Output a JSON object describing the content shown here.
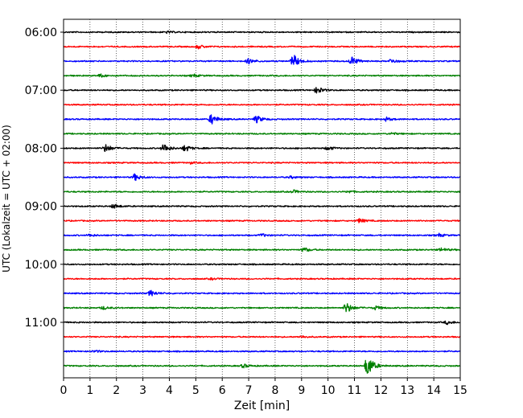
{
  "chart_data": {
    "type": "helicorder",
    "xlabel": "Zeit  [min]",
    "ylabel": "UTC (Lokalzeit = UTC + 02:00)",
    "xlim": [
      0,
      15
    ],
    "x_ticks": [
      "0",
      "1",
      "2",
      "3",
      "4",
      "5",
      "6",
      "7",
      "8",
      "9",
      "10",
      "11",
      "12",
      "13",
      "14",
      "15"
    ],
    "grid": "vertical dotted at each minute",
    "y_tick_labels": [
      "06:00",
      "07:00",
      "08:00",
      "09:00",
      "10:00",
      "11:00"
    ],
    "trace_interval_min": 15,
    "trace_colors": [
      "#000000",
      "#ff0000",
      "#0000ff",
      "#008000"
    ],
    "traces": [
      {
        "start": "06:00",
        "color": "#000000",
        "events": [
          {
            "t": 3.9,
            "amp": 0.12
          }
        ]
      },
      {
        "start": "06:15",
        "color": "#ff0000",
        "events": [
          {
            "t": 5.1,
            "amp": 0.25
          }
        ]
      },
      {
        "start": "06:30",
        "color": "#0000ff",
        "events": [
          {
            "t": 7.0,
            "amp": 0.35
          },
          {
            "t": 8.7,
            "amp": 0.9
          },
          {
            "t": 10.9,
            "amp": 0.6
          },
          {
            "t": 12.4,
            "amp": 0.3
          }
        ]
      },
      {
        "start": "06:45",
        "color": "#008000",
        "events": [
          {
            "t": 1.4,
            "amp": 0.2
          },
          {
            "t": 4.9,
            "amp": 0.2
          }
        ]
      },
      {
        "start": "07:00",
        "color": "#000000",
        "events": [
          {
            "t": 9.6,
            "amp": 0.5
          }
        ]
      },
      {
        "start": "07:15",
        "color": "#ff0000",
        "events": []
      },
      {
        "start": "07:30",
        "color": "#0000ff",
        "events": [
          {
            "t": 5.6,
            "amp": 0.7
          },
          {
            "t": 7.3,
            "amp": 0.5
          },
          {
            "t": 12.2,
            "amp": 0.25
          }
        ]
      },
      {
        "start": "07:45",
        "color": "#008000",
        "events": [
          {
            "t": 12.4,
            "amp": 0.15
          }
        ]
      },
      {
        "start": "08:00",
        "color": "#000000",
        "events": [
          {
            "t": 1.6,
            "amp": 0.55
          },
          {
            "t": 3.8,
            "amp": 0.6
          },
          {
            "t": 4.6,
            "amp": 0.45
          },
          {
            "t": 10.0,
            "amp": 0.25
          }
        ]
      },
      {
        "start": "08:15",
        "color": "#ff0000",
        "events": [
          {
            "t": 4.8,
            "amp": 0.12
          }
        ]
      },
      {
        "start": "08:30",
        "color": "#0000ff",
        "events": [
          {
            "t": 2.7,
            "amp": 0.45
          },
          {
            "t": 8.6,
            "amp": 0.15
          }
        ]
      },
      {
        "start": "08:45",
        "color": "#008000",
        "events": [
          {
            "t": 8.7,
            "amp": 0.2
          },
          {
            "t": 10.8,
            "amp": 0.15
          }
        ]
      },
      {
        "start": "09:00",
        "color": "#000000",
        "events": [
          {
            "t": 1.9,
            "amp": 0.3
          }
        ]
      },
      {
        "start": "09:15",
        "color": "#ff0000",
        "events": [
          {
            "t": 11.2,
            "amp": 0.3
          }
        ]
      },
      {
        "start": "09:30",
        "color": "#0000ff",
        "events": [
          {
            "t": 1.0,
            "amp": 0.15
          },
          {
            "t": 7.5,
            "amp": 0.2
          },
          {
            "t": 14.2,
            "amp": 0.2
          }
        ]
      },
      {
        "start": "09:45",
        "color": "#008000",
        "events": [
          {
            "t": 9.1,
            "amp": 0.3
          },
          {
            "t": 14.3,
            "amp": 0.25
          }
        ]
      },
      {
        "start": "10:00",
        "color": "#000000",
        "events": []
      },
      {
        "start": "10:15",
        "color": "#ff0000",
        "events": [
          {
            "t": 5.6,
            "amp": 0.1
          }
        ]
      },
      {
        "start": "10:30",
        "color": "#0000ff",
        "events": [
          {
            "t": 3.3,
            "amp": 0.4
          }
        ]
      },
      {
        "start": "10:45",
        "color": "#008000",
        "events": [
          {
            "t": 1.5,
            "amp": 0.2
          },
          {
            "t": 10.7,
            "amp": 0.75
          },
          {
            "t": 11.8,
            "amp": 0.25
          }
        ]
      },
      {
        "start": "11:00",
        "color": "#000000",
        "events": [
          {
            "t": 14.5,
            "amp": 0.25
          }
        ]
      },
      {
        "start": "11:15",
        "color": "#ff0000",
        "events": [
          {
            "t": 9.0,
            "amp": 0.15
          }
        ]
      },
      {
        "start": "11:30",
        "color": "#0000ff",
        "events": [
          {
            "t": 1.2,
            "amp": 0.12
          }
        ]
      },
      {
        "start": "11:45",
        "color": "#008000",
        "events": [
          {
            "t": 6.8,
            "amp": 0.25
          },
          {
            "t": 11.5,
            "amp": 1.6
          }
        ]
      }
    ]
  }
}
